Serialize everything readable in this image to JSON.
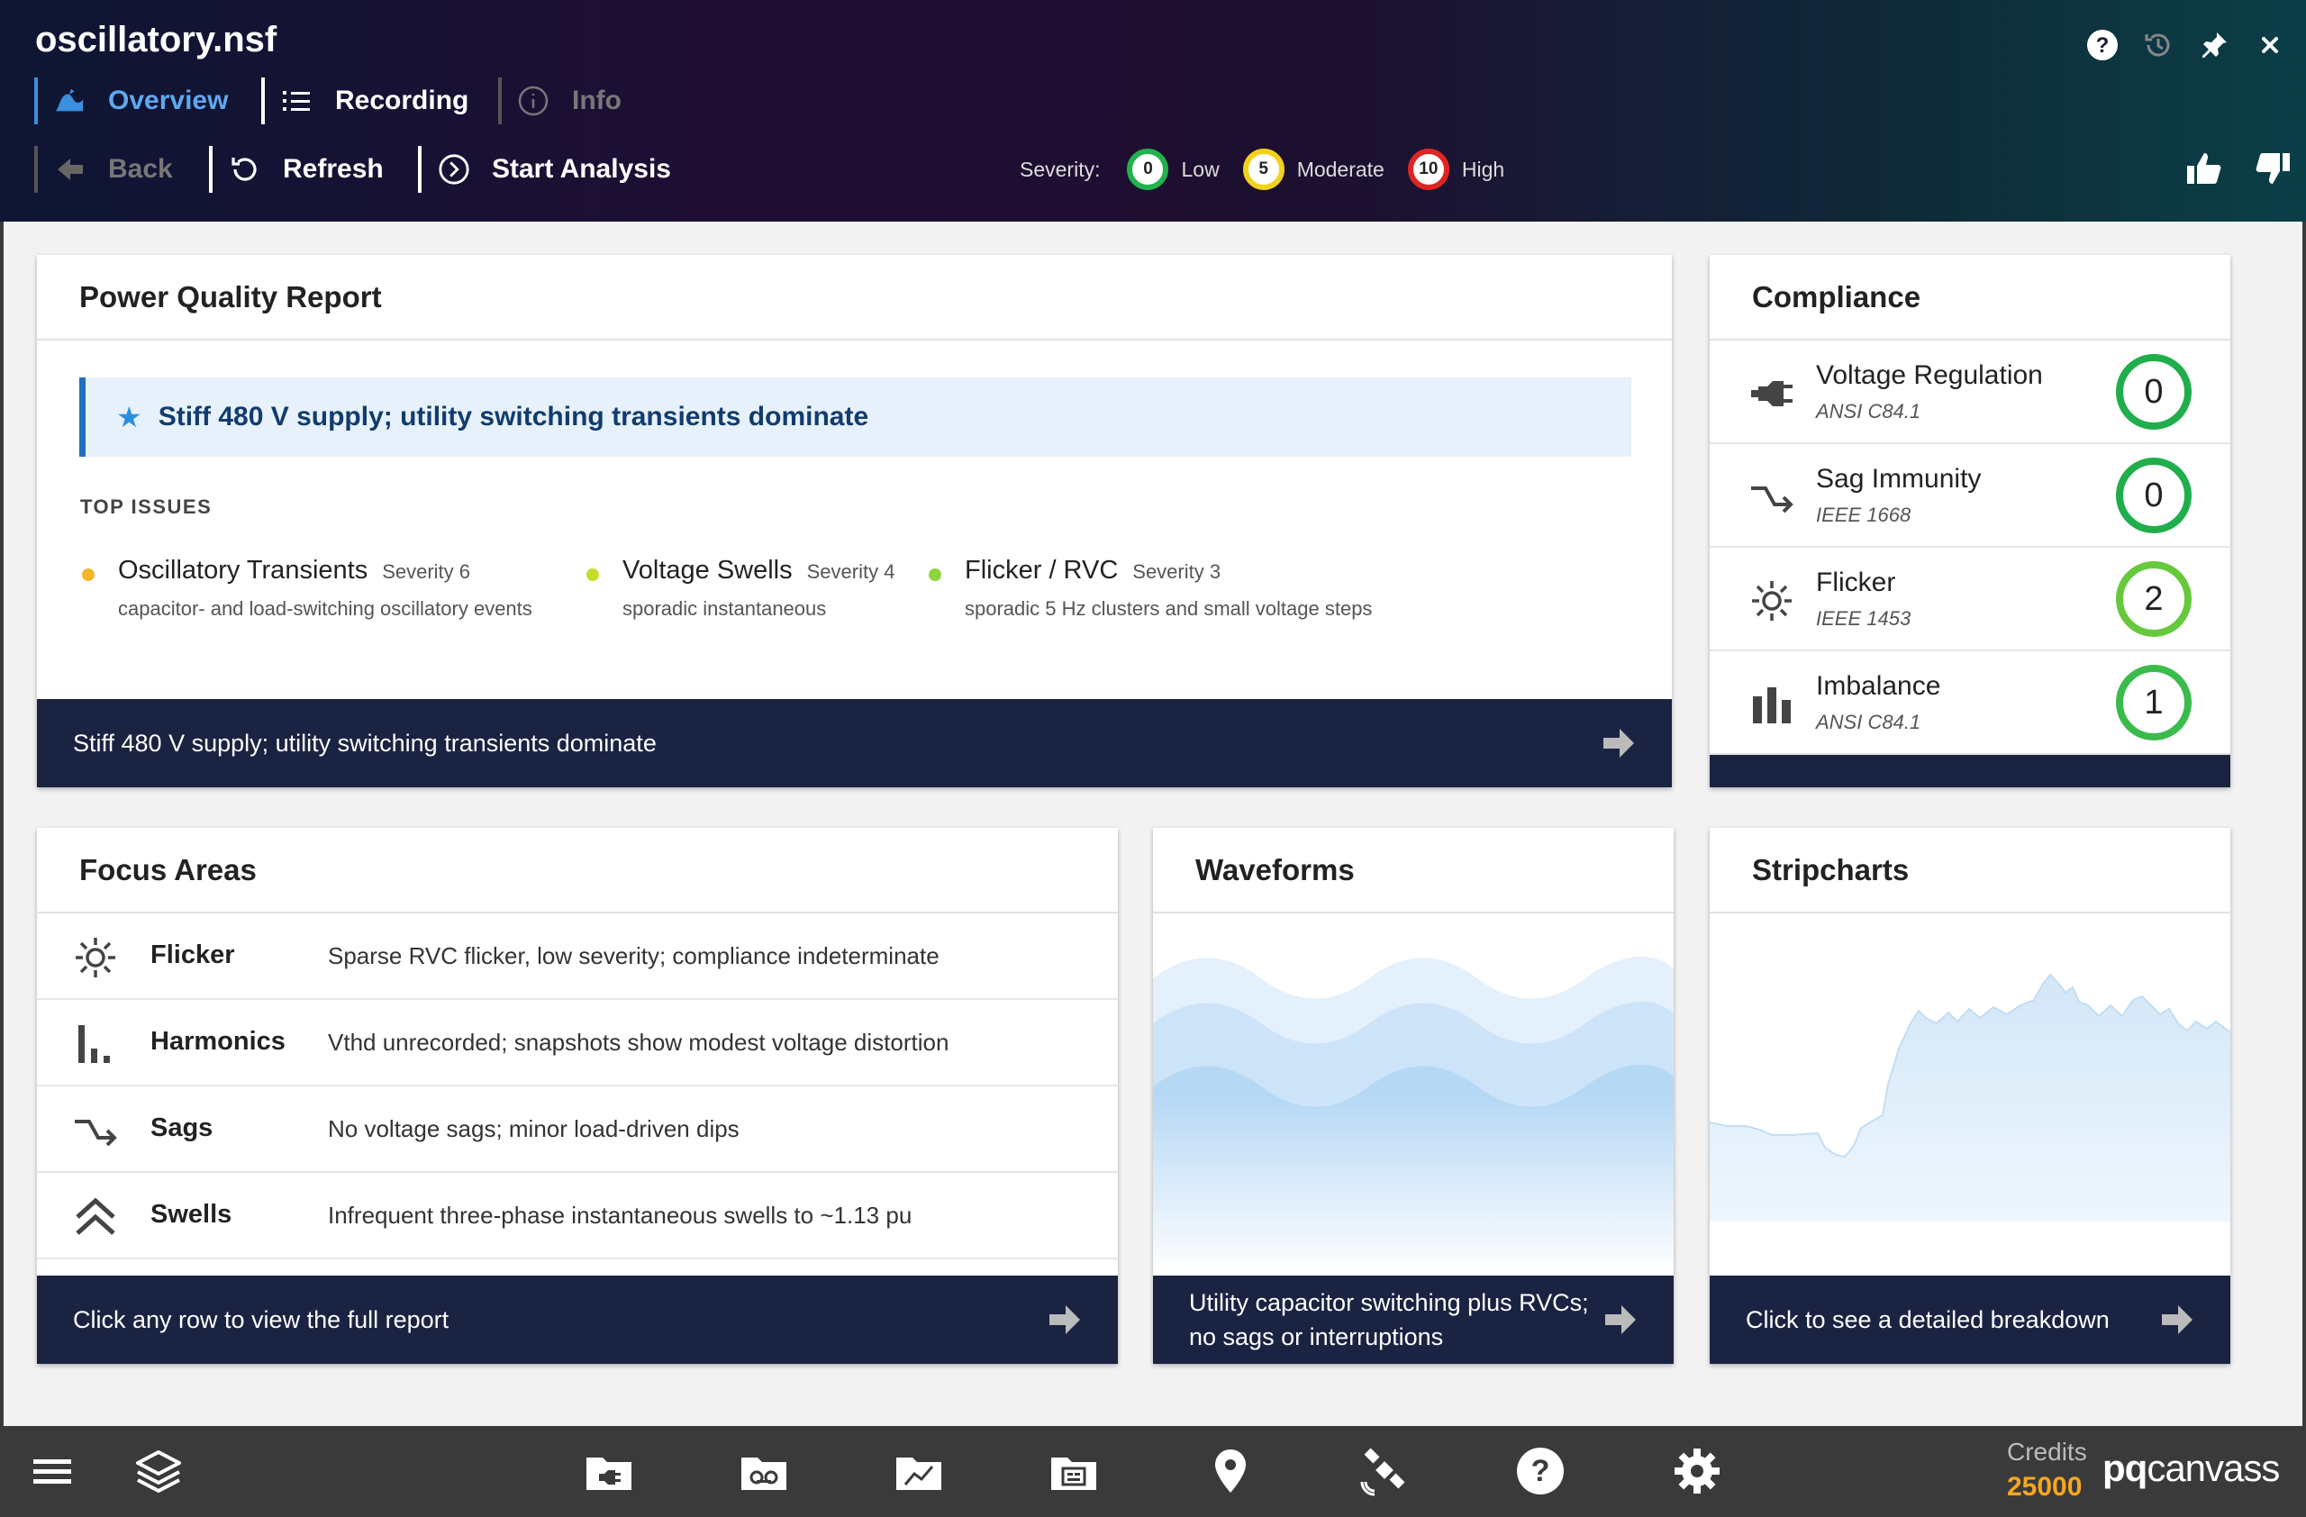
{
  "app": {
    "title": "oscillatory.nsf"
  },
  "tabs": [
    {
      "label": "Overview",
      "icon": "wave-icon"
    },
    {
      "label": "Recording",
      "icon": "list-icon"
    },
    {
      "label": "Info",
      "icon": "info-icon"
    }
  ],
  "actions": {
    "back": "Back",
    "refresh": "Refresh",
    "start": "Start Analysis"
  },
  "severity": {
    "label": "Severity:",
    "levels": [
      {
        "value": "0",
        "label": "Low",
        "color": "#22b24c"
      },
      {
        "value": "5",
        "label": "Moderate",
        "color": "#f2d21b"
      },
      {
        "value": "10",
        "label": "High",
        "color": "#e02424"
      }
    ]
  },
  "power_quality": {
    "title": "Power Quality Report",
    "summary": "Stiff 480 V supply; utility switching transients dominate",
    "top_issues_label": "TOP ISSUES",
    "issues": [
      {
        "name": "Oscillatory Transients",
        "severity": "Severity 6",
        "desc": "capacitor- and load-switching oscillatory events",
        "color": "#f5b62a"
      },
      {
        "name": "Voltage Swells",
        "severity": "Severity 4",
        "desc": "sporadic instantaneous",
        "color": "#c5dc2b"
      },
      {
        "name": "Flicker / RVC",
        "severity": "Severity 3",
        "desc": "sporadic 5 Hz clusters and small voltage steps",
        "color": "#8fd43a"
      }
    ],
    "footer": "Stiff 480 V supply; utility switching transients dominate"
  },
  "compliance": {
    "title": "Compliance",
    "items": [
      {
        "name": "Voltage Regulation",
        "standard": "ANSI C84.1",
        "score": "0",
        "color": "#1fae4b"
      },
      {
        "name": "Sag Immunity",
        "standard": "IEEE 1668",
        "score": "0",
        "color": "#1fae4b"
      },
      {
        "name": "Flicker",
        "standard": "IEEE 1453",
        "score": "2",
        "color": "#66c93c"
      },
      {
        "name": "Imbalance",
        "standard": "ANSI C84.1",
        "score": "1",
        "color": "#3bbb4a"
      }
    ]
  },
  "focus": {
    "title": "Focus Areas",
    "items": [
      {
        "name": "Flicker",
        "desc": "Sparse RVC flicker, low severity; compliance indeterminate"
      },
      {
        "name": "Harmonics",
        "desc": "Vthd unrecorded; snapshots show modest voltage distortion"
      },
      {
        "name": "Sags",
        "desc": "No voltage sags; minor load-driven dips"
      },
      {
        "name": "Swells",
        "desc": "Infrequent three-phase instantaneous swells to ~1.13 pu"
      }
    ],
    "footer": "Click any row to view the full report"
  },
  "waveforms": {
    "title": "Waveforms",
    "footer": "Utility capacitor switching plus RVCs; no sags or interruptions"
  },
  "stripcharts": {
    "title": "Stripcharts",
    "footer": "Click to see a detailed breakdown"
  },
  "bottom": {
    "credits_label": "Credits",
    "credits_value": "25000",
    "brand_bold": "pq",
    "brand_rest": "canvass"
  }
}
